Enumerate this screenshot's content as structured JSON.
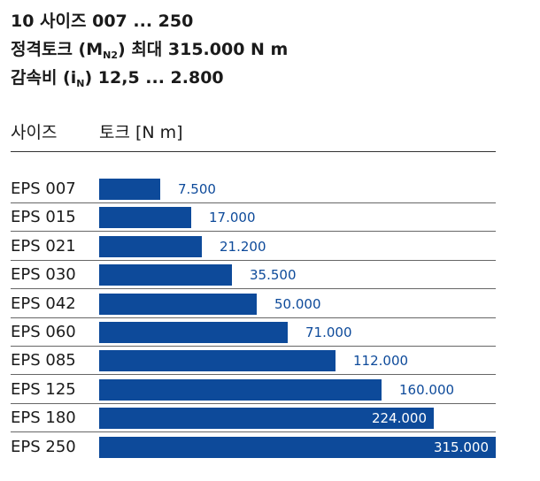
{
  "header": {
    "line1": "10 사이즈 007 ... 250",
    "line2_pre": "정격토크 (M",
    "line2_sub": "N2",
    "line2_post": ") 최대 315.000 N m",
    "line3_pre": "감속비 (i",
    "line3_sub": "N",
    "line3_post": ") 12,5 ... 2.800"
  },
  "columns": {
    "size": "사이즈",
    "torque": "토크 [N m]"
  },
  "colors": {
    "bar": "#0d4a9a"
  },
  "chart_data": {
    "type": "bar",
    "orientation": "horizontal",
    "categories": [
      "EPS 007",
      "EPS 015",
      "EPS 021",
      "EPS 030",
      "EPS 042",
      "EPS 060",
      "EPS 085",
      "EPS 125",
      "EPS 180",
      "EPS 250"
    ],
    "values": [
      7500,
      17000,
      21200,
      35500,
      50000,
      71000,
      112000,
      160000,
      224000,
      315000
    ],
    "value_labels": [
      "7.500",
      "17.000",
      "21.200",
      "35.500",
      "50.000",
      "71.000",
      "112.000",
      "160.000",
      "224.000",
      "315.000"
    ],
    "scale": "sqrt",
    "xlim": [
      0,
      315000
    ],
    "grid": false,
    "legend": "none"
  }
}
